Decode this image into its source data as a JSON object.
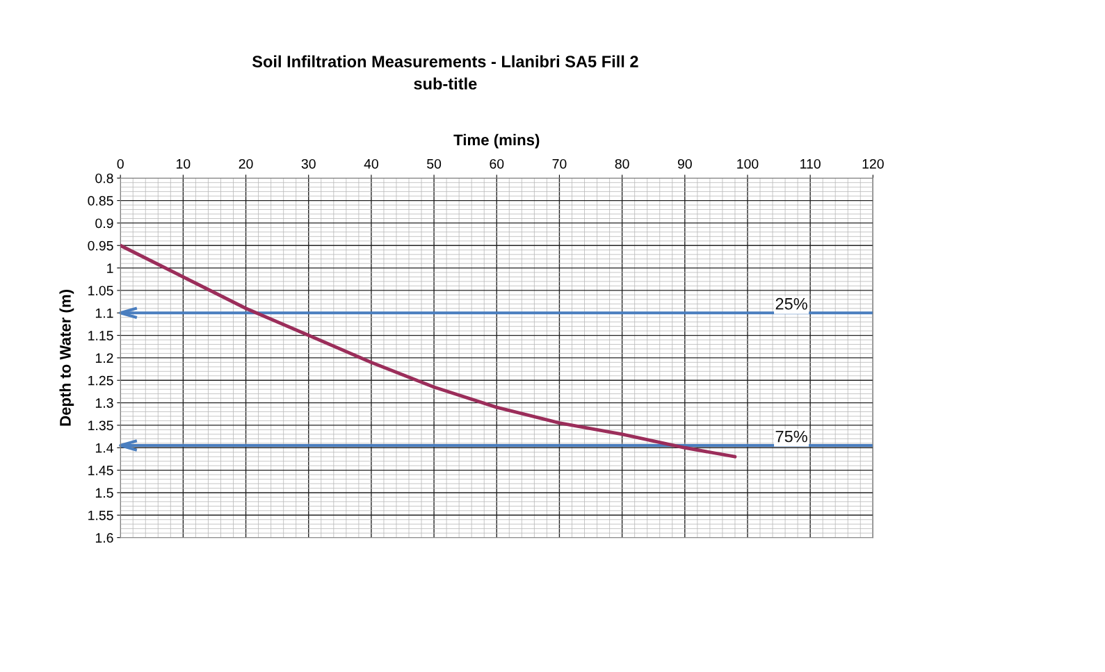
{
  "chart_data": {
    "type": "line",
    "title": "Soil Infiltration Measurements - Llanibri SA5 Fill 2",
    "subtitle": "sub-title",
    "xlabel": "Time (mins)",
    "ylabel": "Depth to Water (m)",
    "x": [
      0,
      10,
      20,
      30,
      40,
      50,
      60,
      70,
      80,
      90,
      98
    ],
    "series": [
      {
        "color": "#9b2d5a",
        "values": [
          0.95,
          1.02,
          1.09,
          1.15,
          1.21,
          1.265,
          1.31,
          1.345,
          1.37,
          1.4,
          1.42
        ]
      }
    ],
    "xlim": [
      0,
      120
    ],
    "xticks": [
      0,
      10,
      20,
      30,
      40,
      50,
      60,
      70,
      80,
      90,
      100,
      110,
      120
    ],
    "ylim": [
      1.6,
      0.8
    ],
    "yticks": [
      0.8,
      0.85,
      0.9,
      0.95,
      1,
      1.05,
      1.1,
      1.15,
      1.2,
      1.25,
      1.3,
      1.35,
      1.4,
      1.45,
      1.5,
      1.55,
      1.6
    ],
    "ref_lines": [
      {
        "axis": "y",
        "value": 1.1,
        "color": "#4a7ebf"
      },
      {
        "axis": "y",
        "value": 1.395,
        "color": "#4a7ebf"
      }
    ],
    "annotations": [
      {
        "text": "25%",
        "x": 107,
        "y": 1.1
      },
      {
        "text": "75%",
        "x": 107,
        "y": 1.395
      }
    ],
    "grid": true,
    "marker": "none",
    "line_style": "solid"
  }
}
